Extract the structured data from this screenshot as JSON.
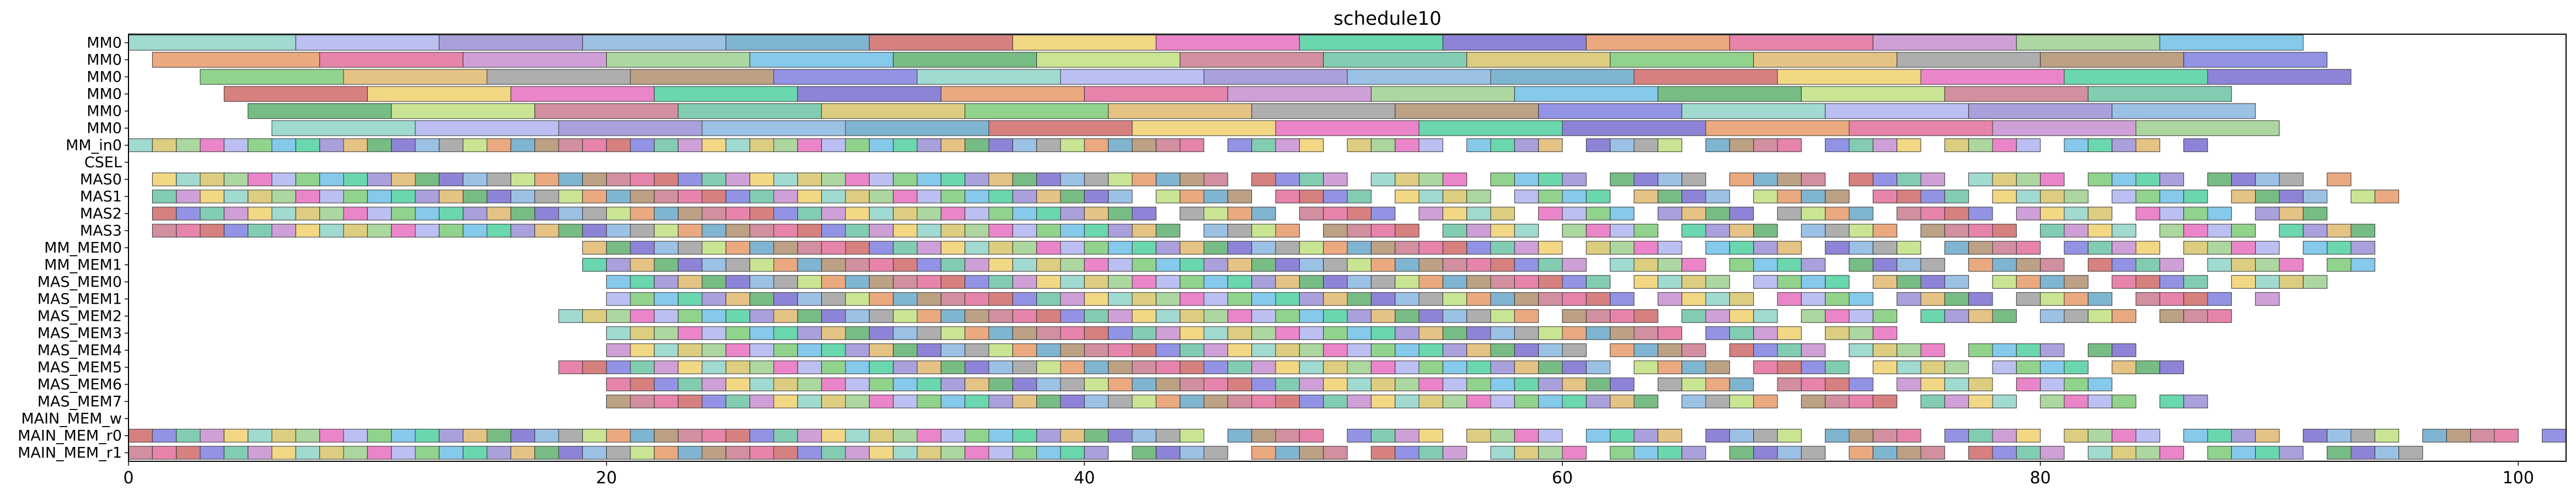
{
  "chart_data": {
    "type": "gantt",
    "title": "schedule10",
    "xlim": [
      0,
      102
    ],
    "xticks": [
      0,
      20,
      40,
      60,
      80,
      100
    ],
    "rows": [
      "MM0",
      "MM0",
      "MM0",
      "MM0",
      "MM0",
      "MM0",
      "MM_in0",
      "CSEL",
      "MAS0",
      "MAS1",
      "MAS2",
      "MAS3",
      "MM_MEM0",
      "MM_MEM1",
      "MAS_MEM0",
      "MAS_MEM1",
      "MAS_MEM2",
      "MAS_MEM3",
      "MAS_MEM4",
      "MAS_MEM5",
      "MAS_MEM6",
      "MAS_MEM7",
      "MAIN_MEM_w",
      "MAIN_MEM_r0",
      "MAIN_MEM_r1"
    ],
    "palette": [
      "#8fd4c8",
      "#c97b8e",
      "#7a6fd0",
      "#b0b4ee",
      "#6cc4a4",
      "#e89a6a",
      "#9a8fd6",
      "#d7c46a",
      "#e36f9c",
      "#8ab6e0",
      "#7ecb78",
      "#c78fd0",
      "#6aa8c9",
      "#e0b870",
      "#9ed08f",
      "#d06a6a",
      "#a0a0a0",
      "#70c0e8",
      "#f0d070",
      "#b09070",
      "#60b070",
      "#e870c0",
      "#8080e0",
      "#c0e080",
      "#50d0a0"
    ],
    "series": [
      {
        "name": "MM0 row 0",
        "tasks": [
          [
            0,
            7
          ],
          [
            7,
            13
          ],
          [
            13,
            19
          ],
          [
            19,
            25
          ],
          [
            25,
            31
          ],
          [
            31,
            37
          ],
          [
            37,
            43
          ],
          [
            43,
            49
          ],
          [
            49,
            55
          ],
          [
            55,
            61
          ],
          [
            61,
            67
          ],
          [
            67,
            73
          ],
          [
            73,
            79
          ],
          [
            79,
            85
          ],
          [
            85,
            91
          ]
        ]
      },
      {
        "name": "MM0 row 1",
        "tasks": [
          [
            1,
            8
          ],
          [
            8,
            14
          ],
          [
            14,
            20
          ],
          [
            20,
            26
          ],
          [
            26,
            32
          ],
          [
            32,
            38
          ],
          [
            38,
            44
          ],
          [
            44,
            50
          ],
          [
            50,
            56
          ],
          [
            56,
            62
          ],
          [
            62,
            68
          ],
          [
            68,
            74
          ],
          [
            74,
            80
          ],
          [
            80,
            86
          ],
          [
            86,
            92
          ]
        ]
      },
      {
        "name": "MM0 row 2",
        "tasks": [
          [
            3,
            9
          ],
          [
            9,
            15
          ],
          [
            15,
            21
          ],
          [
            21,
            27
          ],
          [
            27,
            33
          ],
          [
            33,
            39
          ],
          [
            39,
            45
          ],
          [
            45,
            51
          ],
          [
            51,
            57
          ],
          [
            57,
            63
          ],
          [
            63,
            69
          ],
          [
            69,
            75
          ],
          [
            75,
            81
          ],
          [
            81,
            87
          ],
          [
            87,
            93
          ]
        ]
      },
      {
        "name": "MM0 row 3",
        "tasks": [
          [
            4,
            10
          ],
          [
            10,
            16
          ],
          [
            16,
            22
          ],
          [
            22,
            28
          ],
          [
            28,
            34
          ],
          [
            34,
            40
          ],
          [
            40,
            46
          ],
          [
            46,
            52
          ],
          [
            52,
            58
          ],
          [
            58,
            64
          ],
          [
            64,
            70
          ],
          [
            70,
            76
          ],
          [
            76,
            82
          ],
          [
            82,
            88
          ]
        ]
      },
      {
        "name": "MM0 row 4",
        "tasks": [
          [
            5,
            11
          ],
          [
            11,
            17
          ],
          [
            17,
            23
          ],
          [
            23,
            29
          ],
          [
            29,
            35
          ],
          [
            35,
            41
          ],
          [
            41,
            47
          ],
          [
            47,
            53
          ],
          [
            53,
            59
          ],
          [
            59,
            65
          ],
          [
            65,
            71
          ],
          [
            71,
            77
          ],
          [
            77,
            83
          ],
          [
            83,
            89
          ]
        ]
      },
      {
        "name": "MM0 row 5",
        "tasks": [
          [
            6,
            12
          ],
          [
            12,
            18
          ],
          [
            18,
            24
          ],
          [
            24,
            30
          ],
          [
            30,
            36
          ],
          [
            36,
            42
          ],
          [
            42,
            48
          ],
          [
            48,
            54
          ],
          [
            54,
            60
          ],
          [
            60,
            66
          ],
          [
            66,
            72
          ],
          [
            72,
            78
          ],
          [
            78,
            84
          ],
          [
            84,
            90
          ]
        ]
      }
    ],
    "unit_rows": [
      {
        "row": "MM_in0",
        "start": 0,
        "end": 87
      },
      {
        "row": "MAS0",
        "start": 1,
        "end": 93
      },
      {
        "row": "MAS1",
        "start": 1,
        "end": 95
      },
      {
        "row": "MAS2",
        "start": 1,
        "end": 92
      },
      {
        "row": "MAS3",
        "start": 1,
        "end": 94
      },
      {
        "row": "MM_MEM0",
        "start": 19,
        "end": 94
      },
      {
        "row": "MM_MEM1",
        "start": 19,
        "end": 94
      },
      {
        "row": "MAS_MEM0",
        "start": 20,
        "end": 92
      },
      {
        "row": "MAS_MEM1",
        "start": 20,
        "end": 90
      },
      {
        "row": "MAS_MEM2",
        "start": 18,
        "end": 88
      },
      {
        "row": "MAS_MEM3",
        "start": 20,
        "end": 74
      },
      {
        "row": "MAS_MEM4",
        "start": 20,
        "end": 84
      },
      {
        "row": "MAS_MEM5",
        "start": 18,
        "end": 86
      },
      {
        "row": "MAS_MEM6",
        "start": 20,
        "end": 84
      },
      {
        "row": "MAS_MEM7",
        "start": 20,
        "end": 87
      },
      {
        "row": "MAIN_MEM_r0",
        "start": 0,
        "end": 102
      },
      {
        "row": "MAIN_MEM_r1",
        "start": 0,
        "end": 96
      }
    ]
  }
}
